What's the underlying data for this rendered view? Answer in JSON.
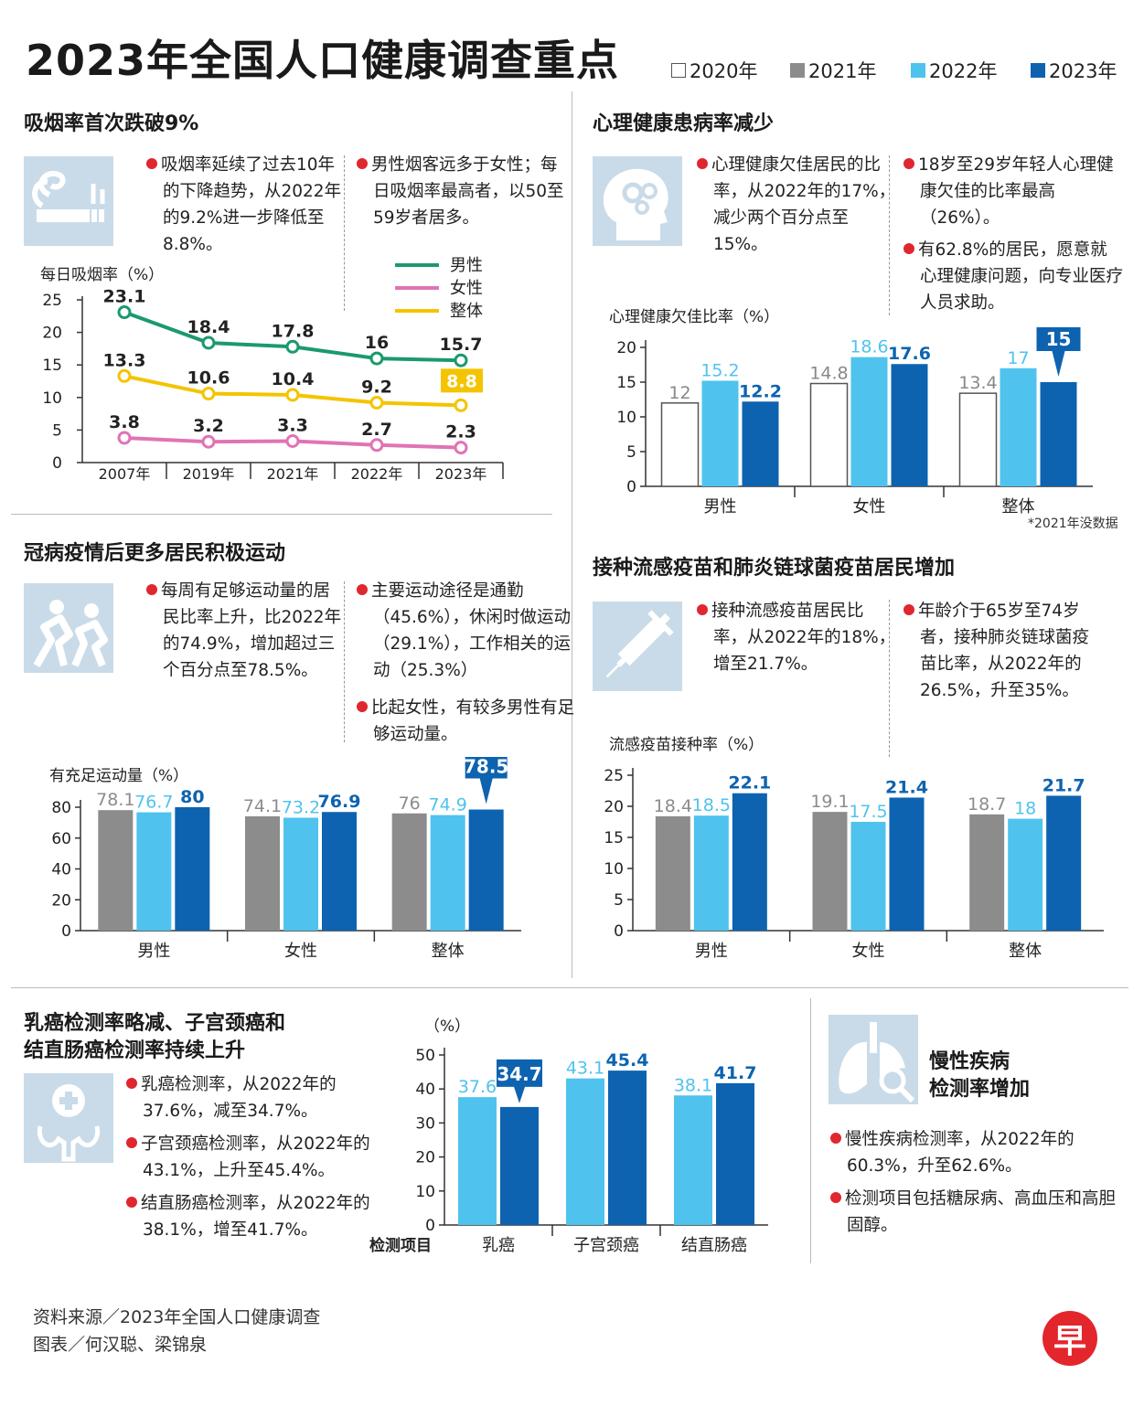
{
  "header": {
    "title": "2023年全国人口健康调查重点"
  },
  "legend": [
    {
      "label": "2020年",
      "color": "#ffffff"
    },
    {
      "label": "2021年",
      "color": "#8c8c8c"
    },
    {
      "label": "2022年",
      "color": "#4fc3ee"
    },
    {
      "label": "2023年",
      "color": "#0d63b0"
    }
  ],
  "colors": {
    "y2020": "#ffffff",
    "y2021": "#8c8c8c",
    "y2022": "#4fc3ee",
    "y2023": "#0d63b0",
    "male": "#1b9a6c",
    "female": "#e074b4",
    "overall": "#f4c400",
    "accent": "#e0262f",
    "icon_bg": "#c9dbe8"
  },
  "smoking": {
    "title": "吸烟率首次跌破9%",
    "icon": "smoking-icon",
    "bullets": [
      "吸烟率延续了过去10年的下降趋势，从2022年的9.2%进一步降低至8.8%。",
      "男性烟客远多于女性；每日吸烟率最高者，以50至59岁者居多。"
    ]
  },
  "mental": {
    "title": "心理健康患病率减少",
    "icon": "brain-gears-icon",
    "bullets": [
      "心理健康欠佳居民的比率，从2022年的17%，减少两个百分点至15%。",
      "18岁至29岁年轻人心理健康欠佳的比率最高（26%）。",
      "有62.8%的居民，愿意就心理健康问题，向专业医疗人员求助。"
    ],
    "note": "*2021年没数据"
  },
  "exercise": {
    "title": "冠病疫情后更多居民积极运动",
    "icon": "runners-icon",
    "bullets": [
      "每周有足够运动量的居民比率上升，比2022年的74.9%，增加超过三个百分点至78.5%。",
      "主要运动途径是通勤（45.6%），休闲时做运动（29.1%），工作相关的运动（25.3%）",
      "比起女性，有较多男性有足够运动量。"
    ]
  },
  "vaccine": {
    "title": "接种流感疫苗和肺炎链球菌疫苗居民增加",
    "icon": "syringe-icon",
    "bullets": [
      "接种流感疫苗居民比率，从2022年的18%，增至21.7%。",
      "年龄介于65岁至74岁者，接种肺炎链球菌疫苗比率，从2022年的26.5%，升至35%。"
    ]
  },
  "cancer": {
    "title_line1": "乳癌检测率略减、子宫颈癌和",
    "title_line2": "结直肠癌检测率持续上升",
    "icon": "female-health-icon",
    "bullets": [
      "乳癌检测率，从2022年的37.6%，减至34.7%。",
      "子宫颈癌检测率，从2022年的43.1%，上升至45.4%。",
      "结直肠癌检测率，从2022年的38.1%，增至41.7%。"
    ]
  },
  "chronic": {
    "title_line1": "慢性疾病",
    "title_line2": "检测率增加",
    "icon": "lungs-magnifier-icon",
    "bullets": [
      "慢性疾病检测率，从2022年的60.3%，升至62.6%。",
      "检测项目包括糖尿病、高血压和高胆固醇。"
    ]
  },
  "footer": {
    "source": "资料来源／2023年全国人口健康调查",
    "credit": "图表／何汉聪、梁锦泉",
    "logo": "早"
  },
  "chart_data": [
    {
      "id": "smoking",
      "type": "line",
      "ylabel": "每日吸烟率（%）",
      "categories": [
        "2007年",
        "2019年",
        "2021年",
        "2022年",
        "2023年"
      ],
      "ylim": [
        0,
        25
      ],
      "yticks": [
        0,
        5,
        10,
        15,
        20,
        25
      ],
      "legend_position": "top-right",
      "series": [
        {
          "name": "男性",
          "values": [
            23.1,
            18.4,
            17.8,
            16,
            15.7
          ]
        },
        {
          "name": "女性",
          "values": [
            3.8,
            3.2,
            3.3,
            2.7,
            2.3
          ]
        },
        {
          "name": "整体",
          "values": [
            13.3,
            10.6,
            10.4,
            9.2,
            8.8
          ]
        }
      ]
    },
    {
      "id": "mental",
      "type": "bar",
      "ylabel": "心理健康欠佳比率（%）",
      "categories": [
        "男性",
        "女性",
        "整体"
      ],
      "ylim": [
        0,
        20
      ],
      "yticks": [
        0,
        5,
        10,
        15,
        20
      ],
      "series": [
        {
          "name": "2020年",
          "values": [
            12,
            14.8,
            13.4
          ]
        },
        {
          "name": "2022年",
          "values": [
            15.2,
            18.6,
            17
          ]
        },
        {
          "name": "2023年",
          "values": [
            12.2,
            17.6,
            15
          ]
        }
      ]
    },
    {
      "id": "exercise",
      "type": "bar",
      "ylabel": "有充足运动量（%）",
      "categories": [
        "男性",
        "女性",
        "整体"
      ],
      "ylim": [
        0,
        80
      ],
      "yticks": [
        0,
        20,
        40,
        60,
        80
      ],
      "series": [
        {
          "name": "2021年",
          "values": [
            78.1,
            74.1,
            76
          ]
        },
        {
          "name": "2022年",
          "values": [
            76.7,
            73.2,
            74.9
          ]
        },
        {
          "name": "2023年",
          "values": [
            80,
            76.9,
            78.5
          ]
        }
      ]
    },
    {
      "id": "vaccine",
      "type": "bar",
      "ylabel": "流感疫苗接种率（%）",
      "categories": [
        "男性",
        "女性",
        "整体"
      ],
      "ylim": [
        0,
        25
      ],
      "yticks": [
        0,
        5,
        10,
        15,
        20,
        25
      ],
      "series": [
        {
          "name": "2021年",
          "values": [
            18.4,
            19.1,
            18.7
          ]
        },
        {
          "name": "2022年",
          "values": [
            18.5,
            17.5,
            18
          ]
        },
        {
          "name": "2023年",
          "values": [
            22.1,
            21.4,
            21.7
          ]
        }
      ]
    },
    {
      "id": "screening",
      "type": "bar",
      "ylabel": "（%）",
      "xlabel": "检测项目",
      "categories": [
        "乳癌",
        "子宫颈癌",
        "结直肠癌"
      ],
      "ylim": [
        0,
        50
      ],
      "yticks": [
        0,
        10,
        20,
        30,
        40,
        50
      ],
      "series": [
        {
          "name": "2022年",
          "values": [
            37.6,
            43.1,
            38.1
          ]
        },
        {
          "name": "2023年",
          "values": [
            34.7,
            45.4,
            41.7
          ]
        }
      ]
    }
  ]
}
